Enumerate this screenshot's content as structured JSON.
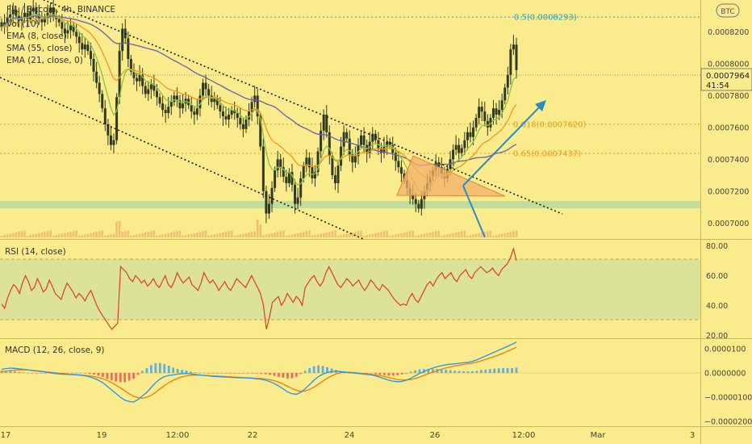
{
  "main": {
    "symbol_title": "FIL / Bitcoin, 4h, BINANCE",
    "indicators": [
      "Vol (10)",
      "EMA (8, close)",
      "SMA (55, close)",
      "EMA (21, close, 0)"
    ],
    "currency_badge": "BTC",
    "price_label": "0.0007964",
    "countdown": "41:54"
  },
  "fib_levels": [
    {
      "label": "0.5(0.0008293)",
      "value": 0.0008293,
      "color": "#2aa0c8"
    },
    {
      "label": "0.618(0.0007620)",
      "value": 0.000762,
      "color": "#f09a18"
    },
    {
      "label": "0.65(0.0007437)",
      "value": 0.0007437,
      "color": "#f09a18"
    }
  ],
  "rsi": {
    "title": "RSI (14, close)",
    "ticks": [
      "80.00",
      "60.00",
      "40.00",
      "20.00"
    ]
  },
  "macd": {
    "title": "MACD (12, 26, close, 9)",
    "ticks": [
      "0.0000100",
      "0.0000000",
      "−0.0000100",
      "−0.0000200"
    ]
  },
  "x_labels": [
    "17",
    "19",
    "12:00",
    "22",
    "24",
    "26",
    "12:00",
    "Mar",
    "3"
  ],
  "colors": {
    "background": "#faeb8c",
    "candle": "#2f3a1e",
    "ema8": "#8bc34a",
    "ema21": "#f09a18",
    "sma55": "#6a5fb0",
    "trend": "#1a1a1a",
    "arrow": "#2b8cc4",
    "support_band": "#b7dca0",
    "rsi_line": "#e23b2b",
    "macd_line": "#2196f3",
    "signal_line": "#f57c00",
    "hist": "#42a5f5"
  },
  "chart_data": [
    {
      "type": "candlestick",
      "title": "FIL / Bitcoin, 4h, BINANCE",
      "ylim": [
        0.00069,
        0.00084
      ],
      "y_ticks": [
        "0.0008200",
        "0.0008000",
        "0.0007800",
        "0.0007600",
        "0.0007400",
        "0.0007200",
        "0.0007000"
      ],
      "x_tick_labels": [
        "17",
        "19",
        "12:00",
        "22",
        "24",
        "26",
        "12:00",
        "Mar",
        "3"
      ],
      "last_price": 0.0007964,
      "close": [
        0.000823,
        0.000826,
        0.000829,
        0.000831,
        0.000834,
        0.00083,
        0.000827,
        0.000829,
        0.000832,
        0.000828,
        0.000833,
        0.000835,
        0.000831,
        0.000828,
        0.000826,
        0.000829,
        0.000832,
        0.000835,
        0.00083,
        0.000828,
        0.000826,
        0.000822,
        0.000819,
        0.000821,
        0.000824,
        0.00082,
        0.000817,
        0.000813,
        0.000809,
        0.000812,
        0.000808,
        0.000803,
        0.000795,
        0.000788,
        0.000781,
        0.000772,
        0.000762,
        0.000755,
        0.000749,
        0.000752,
        0.000779,
        0.000808,
        0.000822,
        0.000816,
        0.000803,
        0.000795,
        0.000791,
        0.000789,
        0.000793,
        0.000786,
        0.000781,
        0.000784,
        0.000787,
        0.000783,
        0.000779,
        0.000775,
        0.000771,
        0.000769,
        0.000773,
        0.000776,
        0.00078,
        0.000777,
        0.000772,
        0.000775,
        0.000778,
        0.000774,
        0.00077,
        0.000768,
        0.000772,
        0.00078,
        0.000788,
        0.000784,
        0.00078,
        0.000776,
        0.000778,
        0.000774,
        0.00077,
        0.000767,
        0.000765,
        0.000768,
        0.000771,
        0.000769,
        0.000766,
        0.000762,
        0.000759,
        0.000765,
        0.00077,
        0.000776,
        0.00078,
        0.000767,
        0.000748,
        0.00072,
        0.000706,
        0.000712,
        0.000722,
        0.000733,
        0.00074,
        0.000735,
        0.000729,
        0.000725,
        0.000732,
        0.000724,
        0.000712,
        0.000716,
        0.000728,
        0.000736,
        0.000741,
        0.000735,
        0.000728,
        0.000732,
        0.000745,
        0.000758,
        0.000768,
        0.000757,
        0.000742,
        0.00073,
        0.000725,
        0.000736,
        0.000748,
        0.000757,
        0.000753,
        0.000743,
        0.000738,
        0.000742,
        0.000749,
        0.000755,
        0.000749,
        0.000744,
        0.000751,
        0.000756,
        0.000752,
        0.000747,
        0.000744,
        0.000748,
        0.000751,
        0.000749,
        0.000744,
        0.000739,
        0.000735,
        0.000731,
        0.000727,
        0.000722,
        0.000718,
        0.000715,
        0.000712,
        0.000709,
        0.000715,
        0.00072,
        0.000725,
        0.000729,
        0.000733,
        0.000738,
        0.000735,
        0.000731,
        0.000728,
        0.000734,
        0.00074,
        0.000746,
        0.000749,
        0.000744,
        0.000747,
        0.000752,
        0.000757,
        0.000754,
        0.00076,
        0.000766,
        0.000773,
        0.00077,
        0.000764,
        0.00076,
        0.000766,
        0.000772,
        0.000768,
        0.000771,
        0.000777,
        0.000785,
        0.000793,
        0.000809,
        0.000812,
        0.000796
      ]
    },
    {
      "type": "line",
      "title": "RSI (14, close)",
      "ylim": [
        18,
        84
      ],
      "y_ticks": [
        "80.00",
        "60.00",
        "40.00",
        "20.00"
      ],
      "values": [
        41,
        38,
        45,
        50,
        54,
        52,
        48,
        55,
        60,
        56,
        50,
        52,
        58,
        54,
        49,
        51,
        57,
        53,
        48,
        46,
        44,
        50,
        55,
        52,
        49,
        45,
        48,
        46,
        43,
        47,
        50,
        45,
        40,
        36,
        33,
        30,
        27,
        24,
        26,
        28,
        66,
        64,
        62,
        58,
        56,
        60,
        58,
        55,
        57,
        53,
        55,
        58,
        54,
        52,
        56,
        60,
        54,
        52,
        56,
        62,
        58,
        55,
        57,
        59,
        54,
        52,
        50,
        55,
        62,
        58,
        55,
        57,
        54,
        50,
        53,
        56,
        52,
        50,
        54,
        58,
        56,
        54,
        52,
        56,
        60,
        56,
        52,
        48,
        40,
        24,
        32,
        42,
        44,
        46,
        40,
        43,
        48,
        45,
        42,
        46,
        44,
        40,
        52,
        55,
        58,
        60,
        56,
        53,
        56,
        62,
        66,
        62,
        58,
        54,
        52,
        55,
        58,
        56,
        53,
        55,
        57,
        53,
        50,
        53,
        57,
        55,
        52,
        50,
        54,
        52,
        50,
        47,
        44,
        42,
        40,
        41,
        40,
        45,
        48,
        44,
        42,
        46,
        50,
        54,
        56,
        53,
        57,
        60,
        62,
        58,
        60,
        62,
        58,
        56,
        60,
        62,
        64,
        60,
        58,
        62,
        64,
        66,
        64,
        62,
        63,
        65,
        62,
        60,
        64,
        66,
        68,
        72,
        78,
        70
      ]
    },
    {
      "type": "line",
      "title": "MACD (12, 26, close, 9)",
      "ylim": [
        -2.2e-05,
        1.4e-05
      ],
      "y_ticks": [
        "0.0000100",
        "0.0000000",
        "−0.0000100",
        "−0.0000200"
      ],
      "series": [
        {
          "name": "",
          "values": [
            1.5e-06,
            1.8e-06,
            2e-06,
            1.9e-06,
            1.7e-06,
            1.5e-06,
            1.3e-06,
            1e-06,
            8e-07,
            6e-07,
            4e-07,
            1e-07,
            -2e-07,
            -4e-07,
            -5e-07,
            -6e-07,
            -6e-07,
            -7e-07,
            -9e-07,
            -1.2e-06,
            -1.6e-06,
            -2.2e-06,
            -3e-06,
            -4e-06,
            -5.5e-06,
            -7e-06,
            -8.5e-06,
            -1e-05,
            -1.12e-05,
            -1.18e-05,
            -1.2e-05,
            -1.1e-05,
            -9.5e-06,
            -8e-06,
            -6e-06,
            -4e-06,
            -2.5e-06,
            -1.5e-06,
            -1e-06,
            -8e-07,
            -5e-07,
            -3e-07,
            -2e-07,
            -4e-07,
            -6e-07,
            -8e-07,
            -1e-06,
            -1.2e-06,
            -1.4e-06,
            -1.5e-06,
            -1.6e-06,
            -1.7e-06,
            -1.8e-06,
            -1.9e-06,
            -2e-06,
            -2e-06,
            -2.1e-06,
            -2.2e-06,
            -2.4e-06,
            -2.6e-06,
            -3e-06,
            -3.6e-06,
            -4.4e-06,
            -5.4e-06,
            -6.6e-06,
            -7.8e-06,
            -8.6e-06,
            -8.8e-06,
            -8e-06,
            -6.5e-06,
            -4.8e-06,
            -3e-06,
            -1.5e-06,
            -5e-07,
            2e-07,
            6e-07,
            8e-07,
            6e-07,
            4e-07,
            2e-07,
            0.0,
            -2e-07,
            -4e-07,
            -6e-07,
            -8e-07,
            -1.2e-06,
            -1.8e-06,
            -2.4e-06,
            -3e-06,
            -3.4e-06,
            -3.6e-06,
            -3.5e-06,
            -3e-06,
            -2.2e-06,
            -1.2e-06,
            -2e-07,
            6e-07,
            1.4e-06,
            2e-06,
            2.6e-06,
            3e-06,
            3.4e-06,
            3.6e-06,
            3.8e-06,
            4e-06,
            4.2e-06,
            4.4e-06,
            4.8e-06,
            5.4e-06,
            6.2e-06,
            7e-06,
            7.8e-06,
            8.6e-06,
            9.4e-06,
            1.02e-05,
            1.1e-05,
            1.18e-05,
            1.28e-05
          ]
        },
        {
          "name": "",
          "values": [
            5e-07,
            8e-07,
            1e-06,
            1.2e-06,
            1.3e-06,
            1.3e-06,
            1.2e-06,
            1.1e-06,
            9e-07,
            7e-07,
            5e-07,
            3e-07,
            1e-07,
            -1e-07,
            -3e-07,
            -5e-07,
            -7e-07,
            -8e-07,
            -9e-07,
            -1e-06,
            -1.2e-06,
            -1.5e-06,
            -1.9e-06,
            -2.4e-06,
            -3.1e-06,
            -4e-06,
            -5e-06,
            -6.2e-06,
            -7.4e-06,
            -8.6e-06,
            -9.6e-06,
            -1.02e-05,
            -1.04e-05,
            -1e-05,
            -9.2e-06,
            -8e-06,
            -6.6e-06,
            -5.2e-06,
            -4e-06,
            -3e-06,
            -2.2e-06,
            -1.6e-06,
            -1.2e-06,
            -1e-06,
            -9e-07,
            -9e-07,
            -1e-06,
            -1.1e-06,
            -1.2e-06,
            -1.3e-06,
            -1.4e-06,
            -1.5e-06,
            -1.6e-06,
            -1.7e-06,
            -1.8e-06,
            -1.9e-06,
            -2e-06,
            -2.1e-06,
            -2.2e-06,
            -2.3e-06,
            -2.5e-06,
            -2.8e-06,
            -3.2e-06,
            -3.8e-06,
            -4.6e-06,
            -5.5e-06,
            -6.4e-06,
            -7.2e-06,
            -7.6e-06,
            -7.4e-06,
            -6.8e-06,
            -5.8e-06,
            -4.6e-06,
            -3.4e-06,
            -2.2e-06,
            -1.2e-06,
            -4e-07,
            1e-07,
            3e-07,
            3e-07,
            2e-07,
            0.0,
            -2e-07,
            -4e-07,
            -6e-07,
            -8e-07,
            -1.1e-06,
            -1.5e-06,
            -1.9e-06,
            -2.3e-06,
            -2.7e-06,
            -2.9e-06,
            -2.9e-06,
            -2.7e-06,
            -2.3e-06,
            -1.7e-06,
            -1e-06,
            -3e-07,
            4e-07,
            1e-06,
            1.6e-06,
            2.1e-06,
            2.5e-06,
            2.9e-06,
            3.2e-06,
            3.5e-06,
            3.8e-06,
            4.1e-06,
            4.5e-06,
            5e-06,
            5.6e-06,
            6.2e-06,
            6.8e-06,
            7.5e-06,
            8.2e-06,
            9e-06,
            9.8e-06,
            1.06e-05
          ]
        }
      ]
    }
  ]
}
